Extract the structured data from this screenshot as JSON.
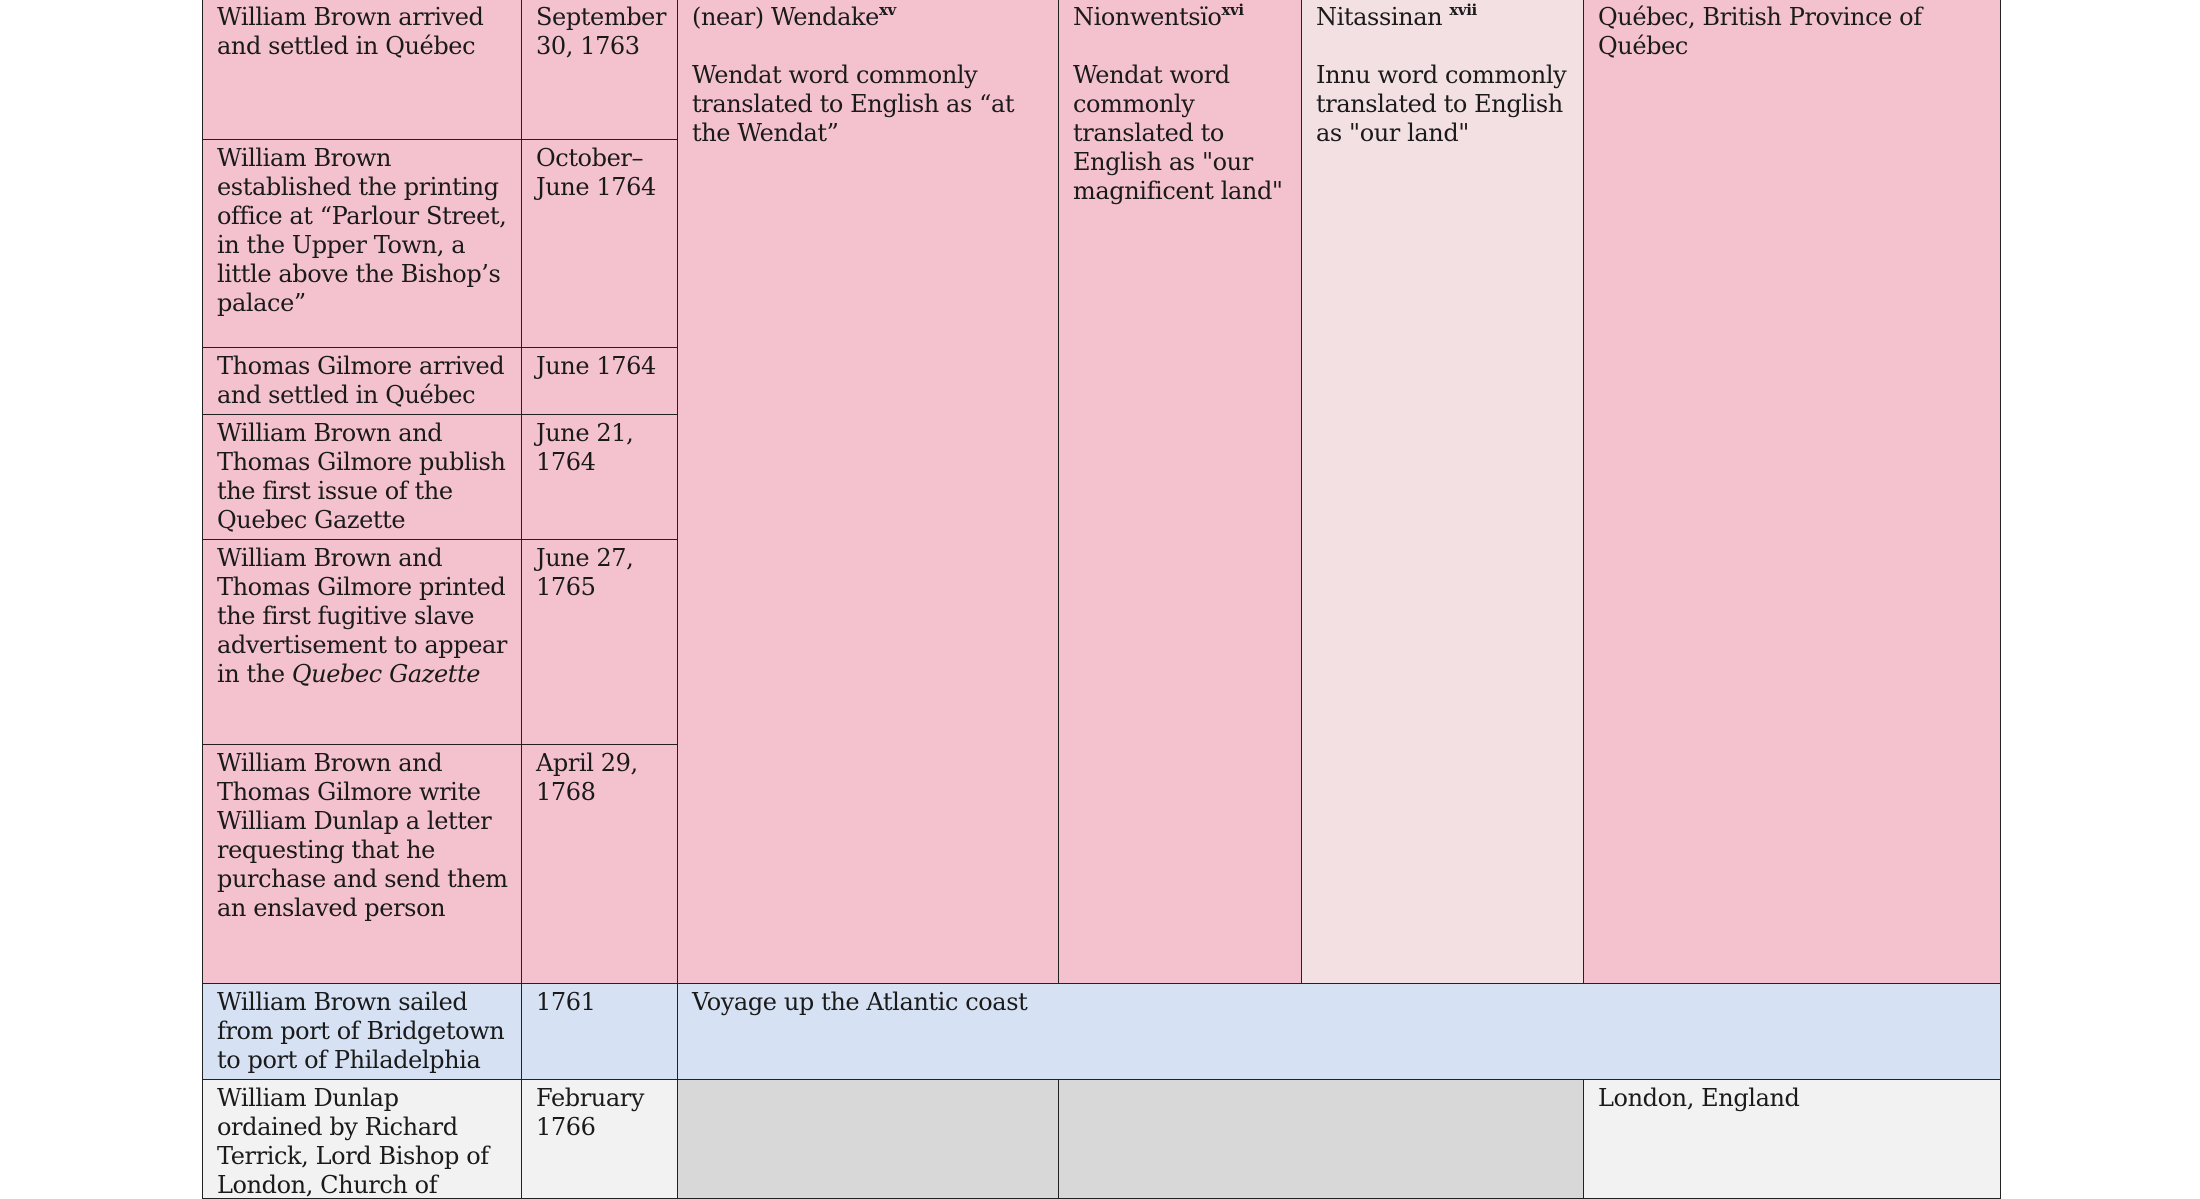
{
  "rows": [
    {
      "event": "William Brown arrived and settled in Québec",
      "date": "September 30, 1763"
    },
    {
      "event": "William Brown established the printing office at “Parlour Street, in the Upper Town, a little above the Bishop’s palace”",
      "date": "October–June 1764"
    },
    {
      "event": "Thomas Gilmore arrived and settled in Québec",
      "date": "June 1764"
    },
    {
      "event": "William Brown and Thomas Gilmore publish the first issue of the Quebec Gazette",
      "date": "June 21, 1764"
    },
    {
      "event_prefix": "William Brown and Thomas Gilmore printed the first fugitive slave advertisement to appear in the ",
      "event_italic": "Quebec Gazette",
      "date": "June 27, 1765"
    },
    {
      "event": "William Brown and Thomas Gilmore write William Dunlap a letter requesting that he purchase and send them an enslaved person",
      "date": "April 29, 1768"
    },
    {
      "event": "William Brown sailed from port of Bridgetown to port of Philadelphia",
      "date": "1761",
      "location": "Voyage up the Atlantic coast"
    },
    {
      "event": "William Dunlap ordained by Richard Terrick, Lord Bishop of London, Church of England",
      "date": "February 1766",
      "location": "London, England"
    }
  ],
  "quebec_places": {
    "wendat": {
      "name": "(near) Wendake",
      "note": "xv",
      "desc": "Wendat word commonly translated to English as “at the Wendat”"
    },
    "nionwentsio": {
      "name": "Nionwentsïo",
      "note": "xvi",
      "desc": "Wendat word commonly translated to English as \"our magnificent land\""
    },
    "nitassinan": {
      "name": "Nitassinan ",
      "note": "xvii",
      "desc": "Innu word commonly translated to English as \"our land\""
    },
    "colonial": {
      "name": "Québec, British Province of Québec"
    }
  },
  "colors": {
    "pink": "#f4c2ce",
    "light_pink": "#f3e0e3",
    "blue": "#d6e2f3",
    "light_gray": "#f2f2f2",
    "dark_gray": "#d8d8d8"
  }
}
